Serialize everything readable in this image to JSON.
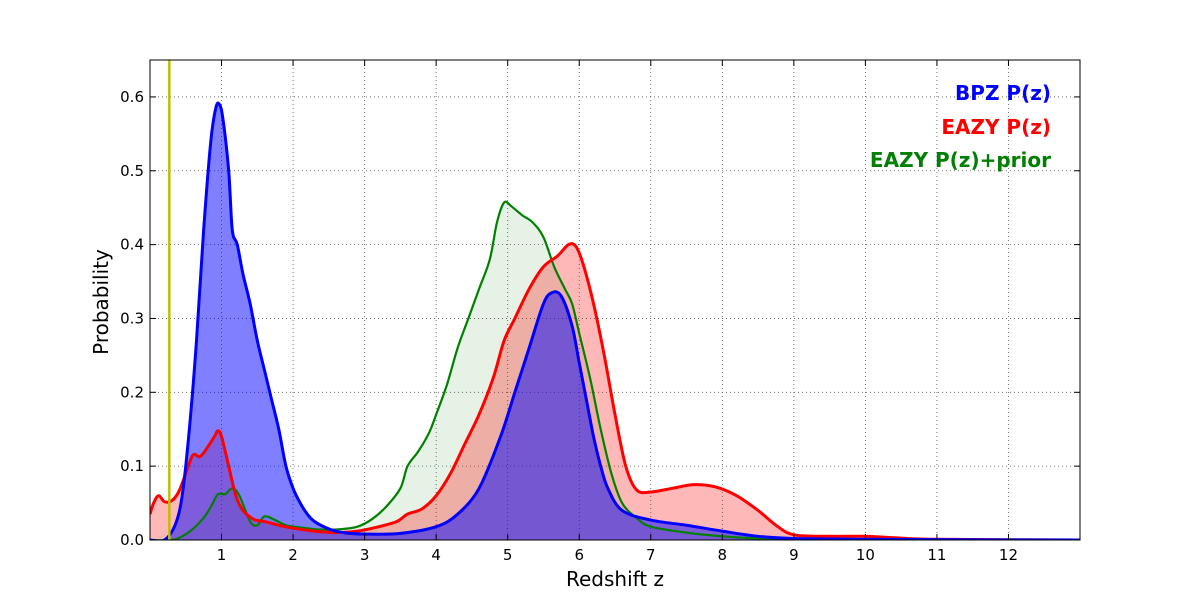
{
  "chart_data": {
    "type": "area",
    "xlabel": "Redshift z",
    "ylabel": "Probability",
    "xlim": [
      0,
      13
    ],
    "ylim": [
      0,
      0.65
    ],
    "x_ticks": [
      1,
      2,
      3,
      4,
      5,
      6,
      7,
      8,
      9,
      10,
      11,
      12
    ],
    "y_ticks": [
      0.0,
      0.1,
      0.2,
      0.3,
      0.4,
      0.5,
      0.6
    ],
    "grid": true,
    "legend_position": "top-right",
    "reference_line": {
      "x": 0.27,
      "color": "#bfbf00"
    },
    "series": [
      {
        "name": "BPZ P(z)",
        "color": "#0000ff",
        "fill": "#0000ff",
        "fill_opacity": 0.5,
        "points": [
          [
            0,
            0
          ],
          [
            0.2,
            0
          ],
          [
            0.35,
            0.02
          ],
          [
            0.45,
            0.06
          ],
          [
            0.55,
            0.15
          ],
          [
            0.65,
            0.27
          ],
          [
            0.75,
            0.42
          ],
          [
            0.85,
            0.54
          ],
          [
            0.92,
            0.585
          ],
          [
            0.97,
            0.59
          ],
          [
            1.02,
            0.57
          ],
          [
            1.1,
            0.5
          ],
          [
            1.15,
            0.42
          ],
          [
            1.22,
            0.4
          ],
          [
            1.3,
            0.36
          ],
          [
            1.4,
            0.32
          ],
          [
            1.5,
            0.27
          ],
          [
            1.6,
            0.23
          ],
          [
            1.7,
            0.19
          ],
          [
            1.8,
            0.15
          ],
          [
            1.9,
            0.1
          ],
          [
            2.0,
            0.07
          ],
          [
            2.1,
            0.05
          ],
          [
            2.2,
            0.035
          ],
          [
            2.3,
            0.025
          ],
          [
            2.5,
            0.015
          ],
          [
            2.7,
            0.01
          ],
          [
            3.0,
            0.008
          ],
          [
            3.5,
            0.009
          ],
          [
            4.0,
            0.018
          ],
          [
            4.3,
            0.035
          ],
          [
            4.6,
            0.07
          ],
          [
            4.9,
            0.14
          ],
          [
            5.1,
            0.2
          ],
          [
            5.3,
            0.26
          ],
          [
            5.5,
            0.32
          ],
          [
            5.62,
            0.335
          ],
          [
            5.75,
            0.33
          ],
          [
            5.9,
            0.29
          ],
          [
            6.0,
            0.24
          ],
          [
            6.1,
            0.19
          ],
          [
            6.2,
            0.14
          ],
          [
            6.3,
            0.1
          ],
          [
            6.4,
            0.07
          ],
          [
            6.6,
            0.04
          ],
          [
            7.0,
            0.027
          ],
          [
            7.5,
            0.02
          ],
          [
            8.0,
            0.012
          ],
          [
            8.5,
            0.005
          ],
          [
            9.0,
            0.002
          ],
          [
            10,
            0.001
          ],
          [
            11,
            0.0005
          ],
          [
            13,
            0
          ]
        ]
      },
      {
        "name": "EAZY P(z)",
        "color": "#ff0000",
        "fill": "#ff0000",
        "fill_opacity": 0.28,
        "points": [
          [
            0,
            0.035
          ],
          [
            0.05,
            0.05
          ],
          [
            0.12,
            0.06
          ],
          [
            0.2,
            0.052
          ],
          [
            0.3,
            0.053
          ],
          [
            0.4,
            0.065
          ],
          [
            0.5,
            0.09
          ],
          [
            0.6,
            0.115
          ],
          [
            0.7,
            0.113
          ],
          [
            0.8,
            0.125
          ],
          [
            0.9,
            0.14
          ],
          [
            0.95,
            0.148
          ],
          [
            1.0,
            0.14
          ],
          [
            1.1,
            0.1
          ],
          [
            1.2,
            0.06
          ],
          [
            1.3,
            0.04
          ],
          [
            1.45,
            0.028
          ],
          [
            1.6,
            0.025
          ],
          [
            1.8,
            0.02
          ],
          [
            2.0,
            0.016
          ],
          [
            2.3,
            0.012
          ],
          [
            2.6,
            0.01
          ],
          [
            2.9,
            0.012
          ],
          [
            3.2,
            0.018
          ],
          [
            3.45,
            0.025
          ],
          [
            3.6,
            0.035
          ],
          [
            3.8,
            0.042
          ],
          [
            4.0,
            0.06
          ],
          [
            4.2,
            0.09
          ],
          [
            4.4,
            0.13
          ],
          [
            4.6,
            0.17
          ],
          [
            4.8,
            0.22
          ],
          [
            4.95,
            0.27
          ],
          [
            5.1,
            0.3
          ],
          [
            5.3,
            0.34
          ],
          [
            5.5,
            0.37
          ],
          [
            5.7,
            0.385
          ],
          [
            5.85,
            0.4
          ],
          [
            5.95,
            0.398
          ],
          [
            6.05,
            0.375
          ],
          [
            6.2,
            0.32
          ],
          [
            6.35,
            0.25
          ],
          [
            6.5,
            0.17
          ],
          [
            6.65,
            0.1
          ],
          [
            6.8,
            0.068
          ],
          [
            7.0,
            0.065
          ],
          [
            7.3,
            0.07
          ],
          [
            7.6,
            0.075
          ],
          [
            7.9,
            0.072
          ],
          [
            8.2,
            0.06
          ],
          [
            8.5,
            0.04
          ],
          [
            8.75,
            0.02
          ],
          [
            9.0,
            0.007
          ],
          [
            9.5,
            0.005
          ],
          [
            10.0,
            0.005
          ],
          [
            10.4,
            0.003
          ],
          [
            11,
            0.001
          ],
          [
            13,
            0
          ]
        ]
      },
      {
        "name": "EAZY P(z)+prior",
        "color": "#008000",
        "fill": "#008000",
        "fill_opacity": 0.1,
        "points": [
          [
            0,
            0
          ],
          [
            0.3,
            0
          ],
          [
            0.45,
            0.005
          ],
          [
            0.6,
            0.015
          ],
          [
            0.75,
            0.03
          ],
          [
            0.85,
            0.045
          ],
          [
            0.95,
            0.062
          ],
          [
            1.05,
            0.062
          ],
          [
            1.15,
            0.07
          ],
          [
            1.25,
            0.06
          ],
          [
            1.4,
            0.025
          ],
          [
            1.5,
            0.02
          ],
          [
            1.6,
            0.032
          ],
          [
            1.75,
            0.027
          ],
          [
            1.9,
            0.02
          ],
          [
            2.1,
            0.017
          ],
          [
            2.4,
            0.014
          ],
          [
            2.7,
            0.015
          ],
          [
            2.9,
            0.018
          ],
          [
            3.1,
            0.028
          ],
          [
            3.3,
            0.045
          ],
          [
            3.5,
            0.07
          ],
          [
            3.6,
            0.1
          ],
          [
            3.75,
            0.12
          ],
          [
            3.9,
            0.145
          ],
          [
            4.0,
            0.17
          ],
          [
            4.15,
            0.21
          ],
          [
            4.3,
            0.26
          ],
          [
            4.45,
            0.3
          ],
          [
            4.6,
            0.34
          ],
          [
            4.75,
            0.38
          ],
          [
            4.85,
            0.43
          ],
          [
            4.95,
            0.457
          ],
          [
            5.05,
            0.452
          ],
          [
            5.2,
            0.44
          ],
          [
            5.35,
            0.43
          ],
          [
            5.5,
            0.41
          ],
          [
            5.65,
            0.37
          ],
          [
            5.8,
            0.34
          ],
          [
            5.9,
            0.32
          ],
          [
            6.0,
            0.28
          ],
          [
            6.15,
            0.22
          ],
          [
            6.3,
            0.15
          ],
          [
            6.45,
            0.09
          ],
          [
            6.6,
            0.05
          ],
          [
            6.8,
            0.03
          ],
          [
            7.0,
            0.018
          ],
          [
            7.5,
            0.01
          ],
          [
            8.0,
            0.005
          ],
          [
            8.5,
            0.002
          ],
          [
            9,
            0.001
          ],
          [
            13,
            0
          ]
        ]
      }
    ]
  }
}
